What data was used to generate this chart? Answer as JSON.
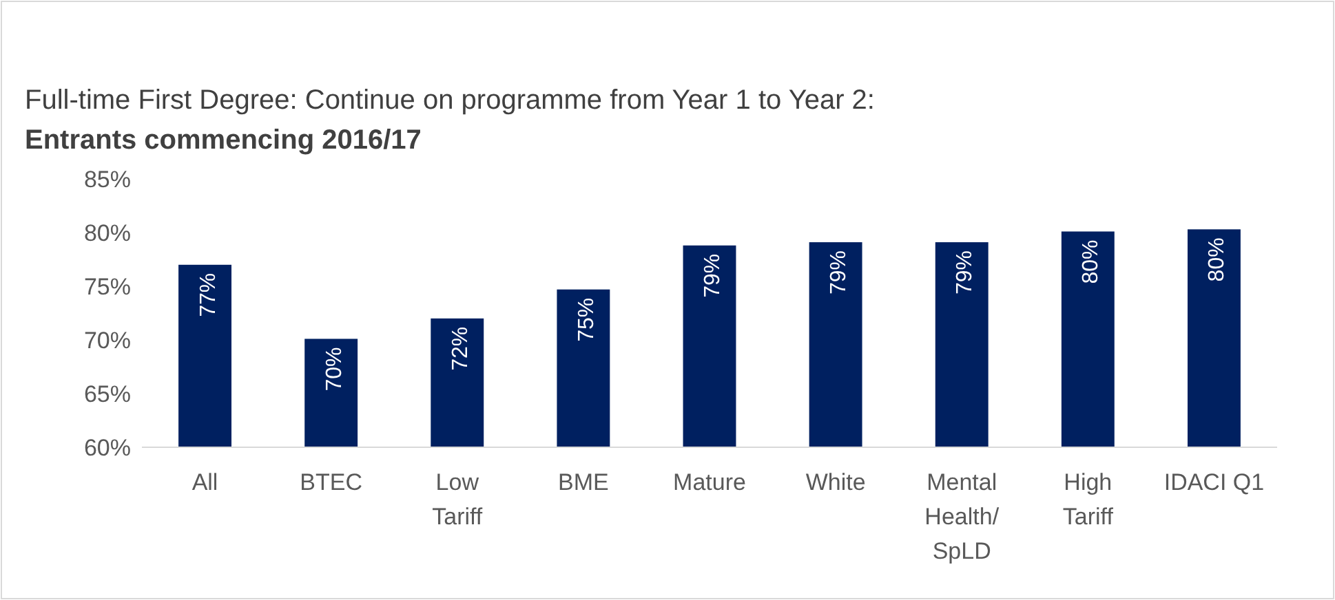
{
  "chart_data": {
    "type": "bar",
    "title": "Full-time First Degree: Continue on programme from Year 1 to Year 2:",
    "subtitle": "Entrants commencing 2016/17",
    "categories": [
      "All",
      "BTEC",
      "Low\nTariff",
      "BME",
      "Mature",
      "White",
      "Mental\nHealth/\nSpLD",
      "High\nTariff",
      "IDACI Q1"
    ],
    "values": [
      77,
      70.1,
      72,
      74.7,
      78.8,
      79.1,
      79.1,
      80.1,
      80.3
    ],
    "value_labels": [
      "77%",
      "70%",
      "72%",
      "75%",
      "79%",
      "79%",
      "79%",
      "80%",
      "80%"
    ],
    "color": "#002060",
    "ylim": [
      60,
      85
    ],
    "yticks": [
      {
        "value": 60,
        "label": "60%"
      },
      {
        "value": 65,
        "label": "65%"
      },
      {
        "value": 70,
        "label": "70%"
      },
      {
        "value": 75,
        "label": "75%"
      },
      {
        "value": 80,
        "label": "80%"
      },
      {
        "value": 85,
        "label": "85%"
      }
    ],
    "grid": false
  }
}
